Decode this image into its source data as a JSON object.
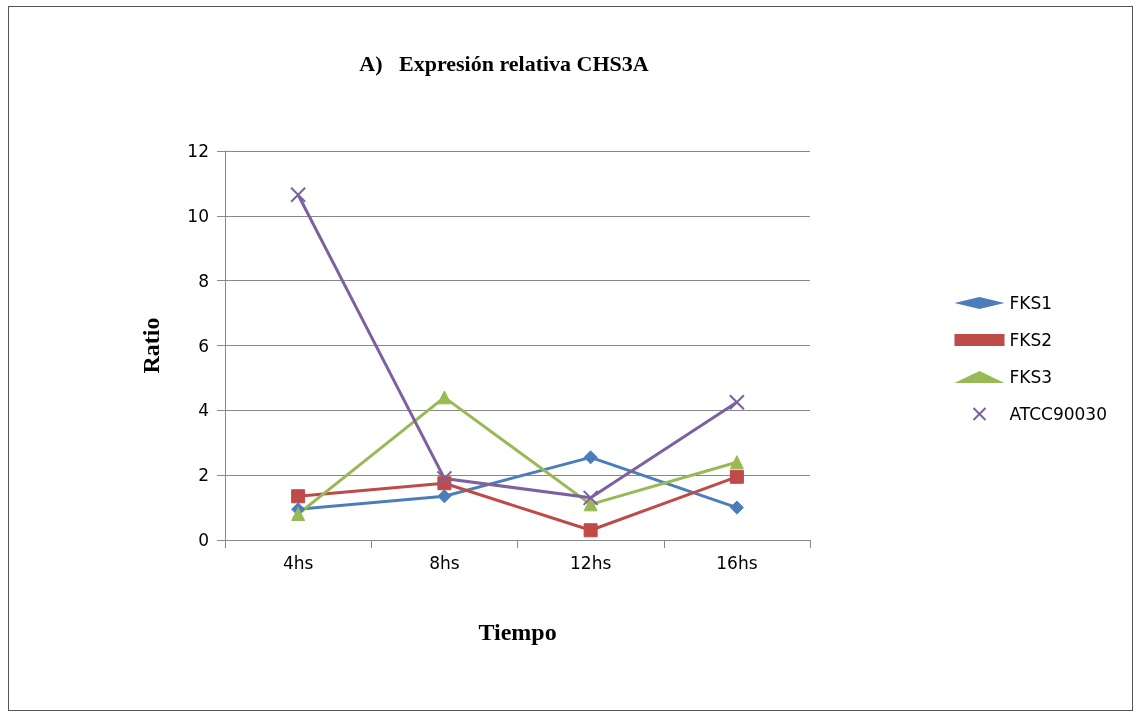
{
  "chart_data": {
    "type": "line",
    "title": "A)   Expresión relativa CHS3A",
    "xlabel": "Tiempo",
    "ylabel": "Ratio",
    "categories": [
      "4hs",
      "8hs",
      "12hs",
      "16hs"
    ],
    "series": [
      {
        "name": "FKS1",
        "color": "#4a7ebb",
        "marker": "diamond",
        "values": [
          0.95,
          1.35,
          2.55,
          1.0
        ]
      },
      {
        "name": "FKS2",
        "color": "#be4b48",
        "marker": "square",
        "values": [
          1.35,
          1.75,
          0.3,
          1.95
        ]
      },
      {
        "name": "FKS3",
        "color": "#98b954",
        "marker": "triangle",
        "values": [
          0.8,
          4.4,
          1.1,
          2.4
        ]
      },
      {
        "name": "ATCC90030",
        "color": "#7d60a0",
        "marker": "cross",
        "values": [
          10.65,
          1.9,
          1.3,
          4.25
        ]
      }
    ],
    "ylim": [
      0,
      12
    ],
    "yticks": [
      0,
      2,
      4,
      6,
      8,
      10,
      12
    ],
    "grid": "y",
    "legend": "right"
  }
}
